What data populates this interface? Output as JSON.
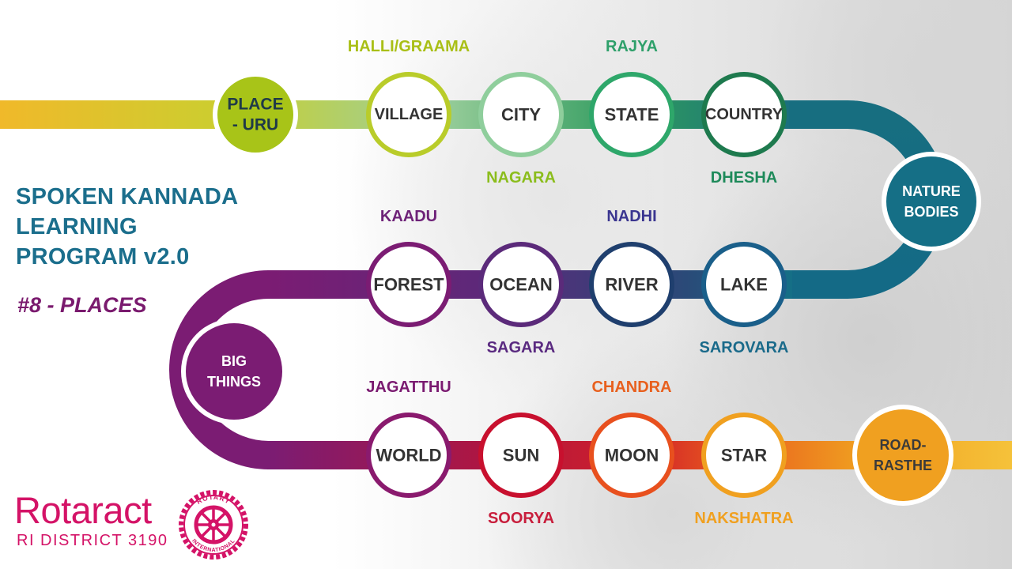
{
  "title": {
    "line1": "SPOKEN KANNADA",
    "line2": "LEARNING",
    "line3": "PROGRAM v2.0",
    "subtitle": "#8 - PLACES"
  },
  "logo": {
    "name": "Rotaract",
    "district": "RI DISTRICT 3190",
    "emblem_top": "ROTARY",
    "emblem_bottom": "INTERNATIONAL",
    "icon": "rotary-wheel-icon",
    "color": "#d41367"
  },
  "sections": [
    {
      "line1": "PLACE",
      "line2": "- URU",
      "color": "#a8c418",
      "text_color": "#1f3a48"
    },
    {
      "line1": "NATURE",
      "line2": "BODIES",
      "color": "#156f86",
      "text_color": "#ffffff"
    },
    {
      "line1": "BIG",
      "line2": "THINGS",
      "color": "#7b1c73",
      "text_color": "#ffffff"
    },
    {
      "line1": "ROAD-",
      "line2": "RASTHE",
      "color": "#f0a020",
      "text_color": "#3a3a3a"
    }
  ],
  "rows": [
    {
      "items": [
        {
          "english": "VILLAGE",
          "kannada": "HALLI/GRAAMA",
          "ring": "#b9cc2a",
          "label_color": "#a9bf16"
        },
        {
          "english": "CITY",
          "kannada": "NAGARA",
          "ring": "#8fce9c",
          "label_color": "#8bbd1c"
        },
        {
          "english": "STATE",
          "kannada": "RAJYA",
          "ring": "#2ea76a",
          "label_color": "#2ea06a"
        },
        {
          "english": "COUNTRY",
          "kannada": "DHESHA",
          "ring": "#1e7a4e",
          "label_color": "#1e8a5a"
        }
      ]
    },
    {
      "items": [
        {
          "english": "FOREST",
          "kannada": "KAADU",
          "ring": "#7b1c73",
          "label_color": "#6e2278"
        },
        {
          "english": "OCEAN",
          "kannada": "SAGARA",
          "ring": "#5b2a7a",
          "label_color": "#5a2a80"
        },
        {
          "english": "RIVER",
          "kannada": "NADHI",
          "ring": "#1f3f6e",
          "label_color": "#3a3590"
        },
        {
          "english": "LAKE",
          "kannada": "SAROVARA",
          "ring": "#1a5f8a",
          "label_color": "#1a6a8a"
        }
      ]
    },
    {
      "items": [
        {
          "english": "WORLD",
          "kannada": "JAGATTHU",
          "ring": "#8a1a6e",
          "label_color": "#7a1a70"
        },
        {
          "english": "SUN",
          "kannada": "SOORYA",
          "ring": "#c8102e",
          "label_color": "#c81e3c"
        },
        {
          "english": "MOON",
          "kannada": "CHANDRA",
          "ring": "#e8501e",
          "label_color": "#e8601e"
        },
        {
          "english": "STAR",
          "kannada": "NAKSHATRA",
          "ring": "#f0a020",
          "label_color": "#f0a020"
        }
      ]
    }
  ],
  "colors": {
    "title": "#1b6e8c",
    "subtitle": "#7a1a6e"
  }
}
